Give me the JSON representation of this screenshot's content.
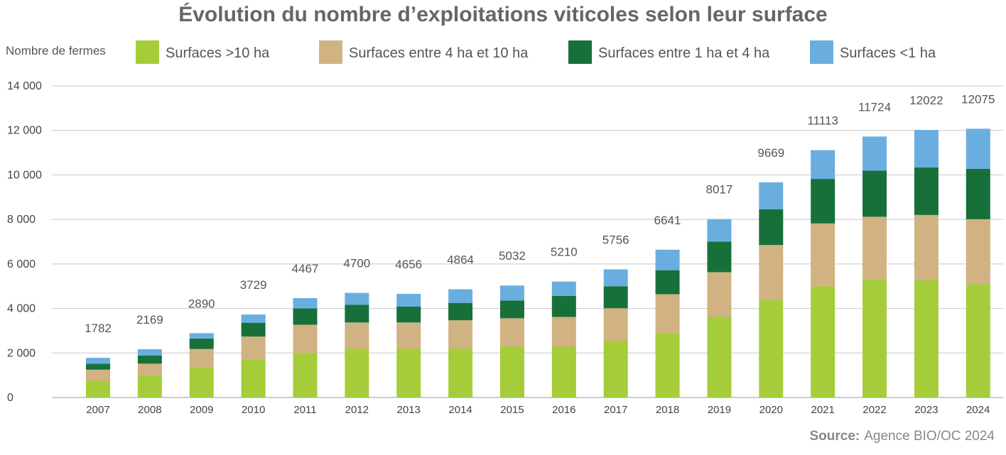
{
  "chart_data": {
    "type": "bar",
    "stacked": true,
    "title": "Évolution du nombre d’exploitations viticoles selon leur surface",
    "ylabel": "Nombre de fermes",
    "ylim": [
      0,
      14000
    ],
    "yticks": [
      0,
      2000,
      4000,
      6000,
      8000,
      10000,
      12000,
      14000
    ],
    "ytick_labels": [
      "0",
      "2 000",
      "4 000",
      "6 000",
      "8 000",
      "10 000",
      "12 000",
      "14 000"
    ],
    "grid": true,
    "legend_position": "top",
    "categories": [
      "2007",
      "2008",
      "2009",
      "2010",
      "2011",
      "2012",
      "2013",
      "2014",
      "2015",
      "2016",
      "2017",
      "2018",
      "2019",
      "2020",
      "2021",
      "2022",
      "2023",
      "2024"
    ],
    "series": [
      {
        "name": "Surfaces >10 ha",
        "color": "#a4cd39",
        "values": [
          750,
          1000,
          1380,
          1730,
          2000,
          2200,
          2200,
          2200,
          2280,
          2280,
          2550,
          2900,
          3620,
          4370,
          5000,
          5280,
          5270,
          5090
        ]
      },
      {
        "name": "Surfaces entre 4 ha et 10 ha",
        "color": "#d1b282",
        "values": [
          500,
          520,
          800,
          1010,
          1270,
          1170,
          1170,
          1270,
          1280,
          1340,
          1460,
          1740,
          2010,
          2480,
          2820,
          2840,
          2930,
          2920
        ]
      },
      {
        "name": "Surfaces entre 1 ha et 4 ha",
        "color": "#17703a",
        "values": [
          270,
          370,
          470,
          620,
          730,
          800,
          720,
          780,
          800,
          940,
          990,
          1080,
          1370,
          1610,
          2000,
          2070,
          2140,
          2260
        ]
      },
      {
        "name": "Surfaces <1 ha",
        "color": "#6aaee0",
        "values": [
          262,
          279,
          240,
          369,
          467,
          530,
          566,
          614,
          672,
          650,
          756,
          921,
          1017,
          1209,
          1293,
          1534,
          1682,
          1805
        ]
      }
    ],
    "totals": [
      1782,
      2169,
      2890,
      3729,
      4467,
      4700,
      4656,
      4864,
      5032,
      5210,
      5756,
      6641,
      8017,
      9669,
      11113,
      11724,
      12022,
      12075
    ]
  },
  "source": {
    "label": "Source:",
    "text": "Agence BIO/OC 2024"
  }
}
